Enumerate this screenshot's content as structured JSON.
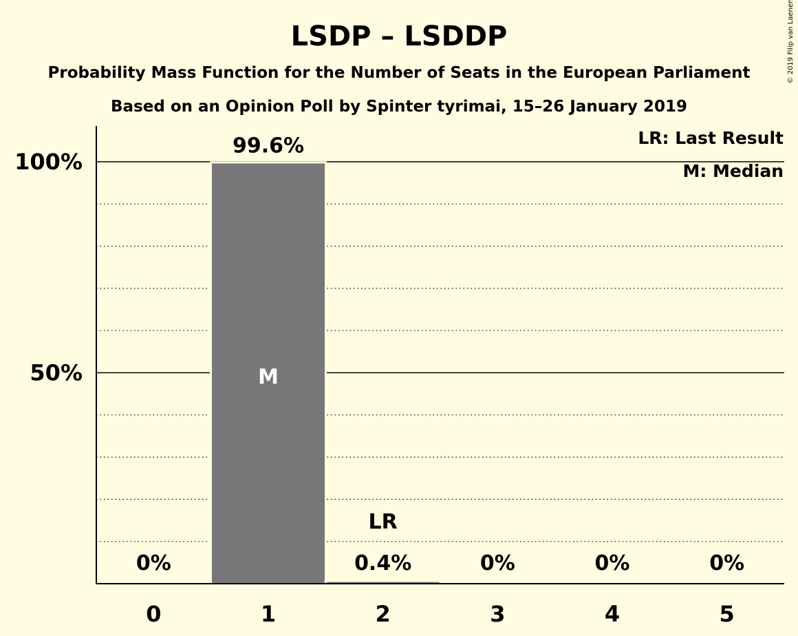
{
  "chart_data": {
    "type": "bar",
    "title": "LSDP – LSDDP",
    "subtitle_1": "Probability Mass Function for the Number of Seats in the European Parliament",
    "subtitle_2": "Based on an Opinion Poll by Spinter tyrimai, 15–26 January 2019",
    "categories": [
      "0",
      "1",
      "2",
      "3",
      "4",
      "5"
    ],
    "values": [
      0,
      99.6,
      0.4,
      0,
      0,
      0
    ],
    "value_labels": [
      "0%",
      "99.6%",
      "0.4%",
      "0%",
      "0%",
      "0%"
    ],
    "y_ticks": [
      {
        "value": 50,
        "label": "50%"
      },
      {
        "value": 100,
        "label": "100%"
      }
    ],
    "ylim": [
      0,
      100
    ],
    "grid": "dotted every 10%, solid at 50% and 100%",
    "median_category": "1",
    "median_marker": "M",
    "last_result_category": "2",
    "last_result_marker": "LR",
    "legend": {
      "placement": "top-right",
      "items": [
        "LR: Last Result",
        "M: Median"
      ]
    },
    "bar_color": "#777777",
    "background_color": "#fffce1",
    "copyright": "© 2019 Filip van Laenen"
  }
}
